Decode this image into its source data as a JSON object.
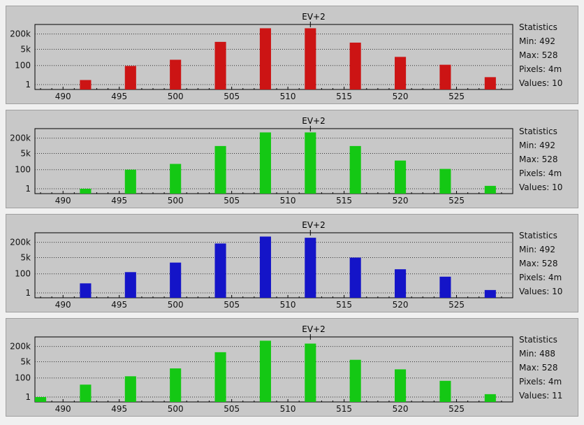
{
  "chart_data": [
    {
      "type": "bar",
      "title": "EV+2",
      "color": "#cc1414",
      "y_scale": "log",
      "y_ticks": [
        "200k",
        "5k",
        "100",
        "1"
      ],
      "x_ticks": [
        "490",
        "495",
        "500",
        "505",
        "510",
        "515",
        "520",
        "525"
      ],
      "xlim": [
        487.5,
        530
      ],
      "x": [
        492,
        496,
        500,
        504,
        508,
        512,
        516,
        520,
        524,
        528
      ],
      "values": [
        3,
        90,
        400,
        30000,
        800000,
        800000,
        25000,
        800,
        120,
        6
      ],
      "marker_x": 512,
      "stats": {
        "heading": "Statistics",
        "min": "Min: 492",
        "max": "Max: 528",
        "pixels": "Pixels: 4m",
        "values": "Values: 10"
      }
    },
    {
      "type": "bar",
      "title": "EV+2",
      "color": "#14c814",
      "y_scale": "log",
      "y_ticks": [
        "200k",
        "5k",
        "100",
        "1"
      ],
      "x_ticks": [
        "490",
        "495",
        "500",
        "505",
        "510",
        "515",
        "520",
        "525"
      ],
      "xlim": [
        487.5,
        530
      ],
      "x": [
        492,
        496,
        500,
        504,
        508,
        512,
        516,
        520,
        524,
        528
      ],
      "values": [
        1,
        100,
        400,
        30000,
        800000,
        800000,
        30000,
        900,
        120,
        2
      ],
      "marker_x": 512,
      "stats": {
        "heading": "Statistics",
        "min": "Min: 492",
        "max": "Max: 528",
        "pixels": "Pixels: 4m",
        "values": "Values: 10"
      }
    },
    {
      "type": "bar",
      "title": "EV+2",
      "color": "#1414c8",
      "y_scale": "log",
      "y_ticks": [
        "200k",
        "5k",
        "100",
        "1"
      ],
      "x_ticks": [
        "490",
        "495",
        "500",
        "505",
        "510",
        "515",
        "520",
        "525"
      ],
      "xlim": [
        487.5,
        530
      ],
      "x": [
        492,
        496,
        500,
        504,
        508,
        512,
        516,
        520,
        524,
        528
      ],
      "values": [
        10,
        150,
        1500,
        150000,
        800000,
        600000,
        5000,
        300,
        50,
        2
      ],
      "marker_x": 512,
      "stats": {
        "heading": "Statistics",
        "min": "Min: 492",
        "max": "Max: 528",
        "pixels": "Pixels: 4m",
        "values": "Values: 10"
      }
    },
    {
      "type": "bar",
      "title": "EV+2",
      "color": "#14c814",
      "y_scale": "log",
      "y_ticks": [
        "200k",
        "5k",
        "100",
        "1"
      ],
      "x_ticks": [
        "490",
        "495",
        "500",
        "505",
        "510",
        "515",
        "520",
        "525"
      ],
      "xlim": [
        487.5,
        530
      ],
      "x": [
        488,
        492,
        496,
        500,
        504,
        508,
        512,
        516,
        520,
        524,
        528
      ],
      "values": [
        1,
        20,
        150,
        1000,
        50000,
        800000,
        400000,
        8000,
        800,
        50,
        2
      ],
      "marker_x": 512,
      "stats": {
        "heading": "Statistics",
        "min": "Min: 488",
        "max": "Max: 528",
        "pixels": "Pixels: 4m",
        "values": "Values: 11"
      }
    }
  ]
}
